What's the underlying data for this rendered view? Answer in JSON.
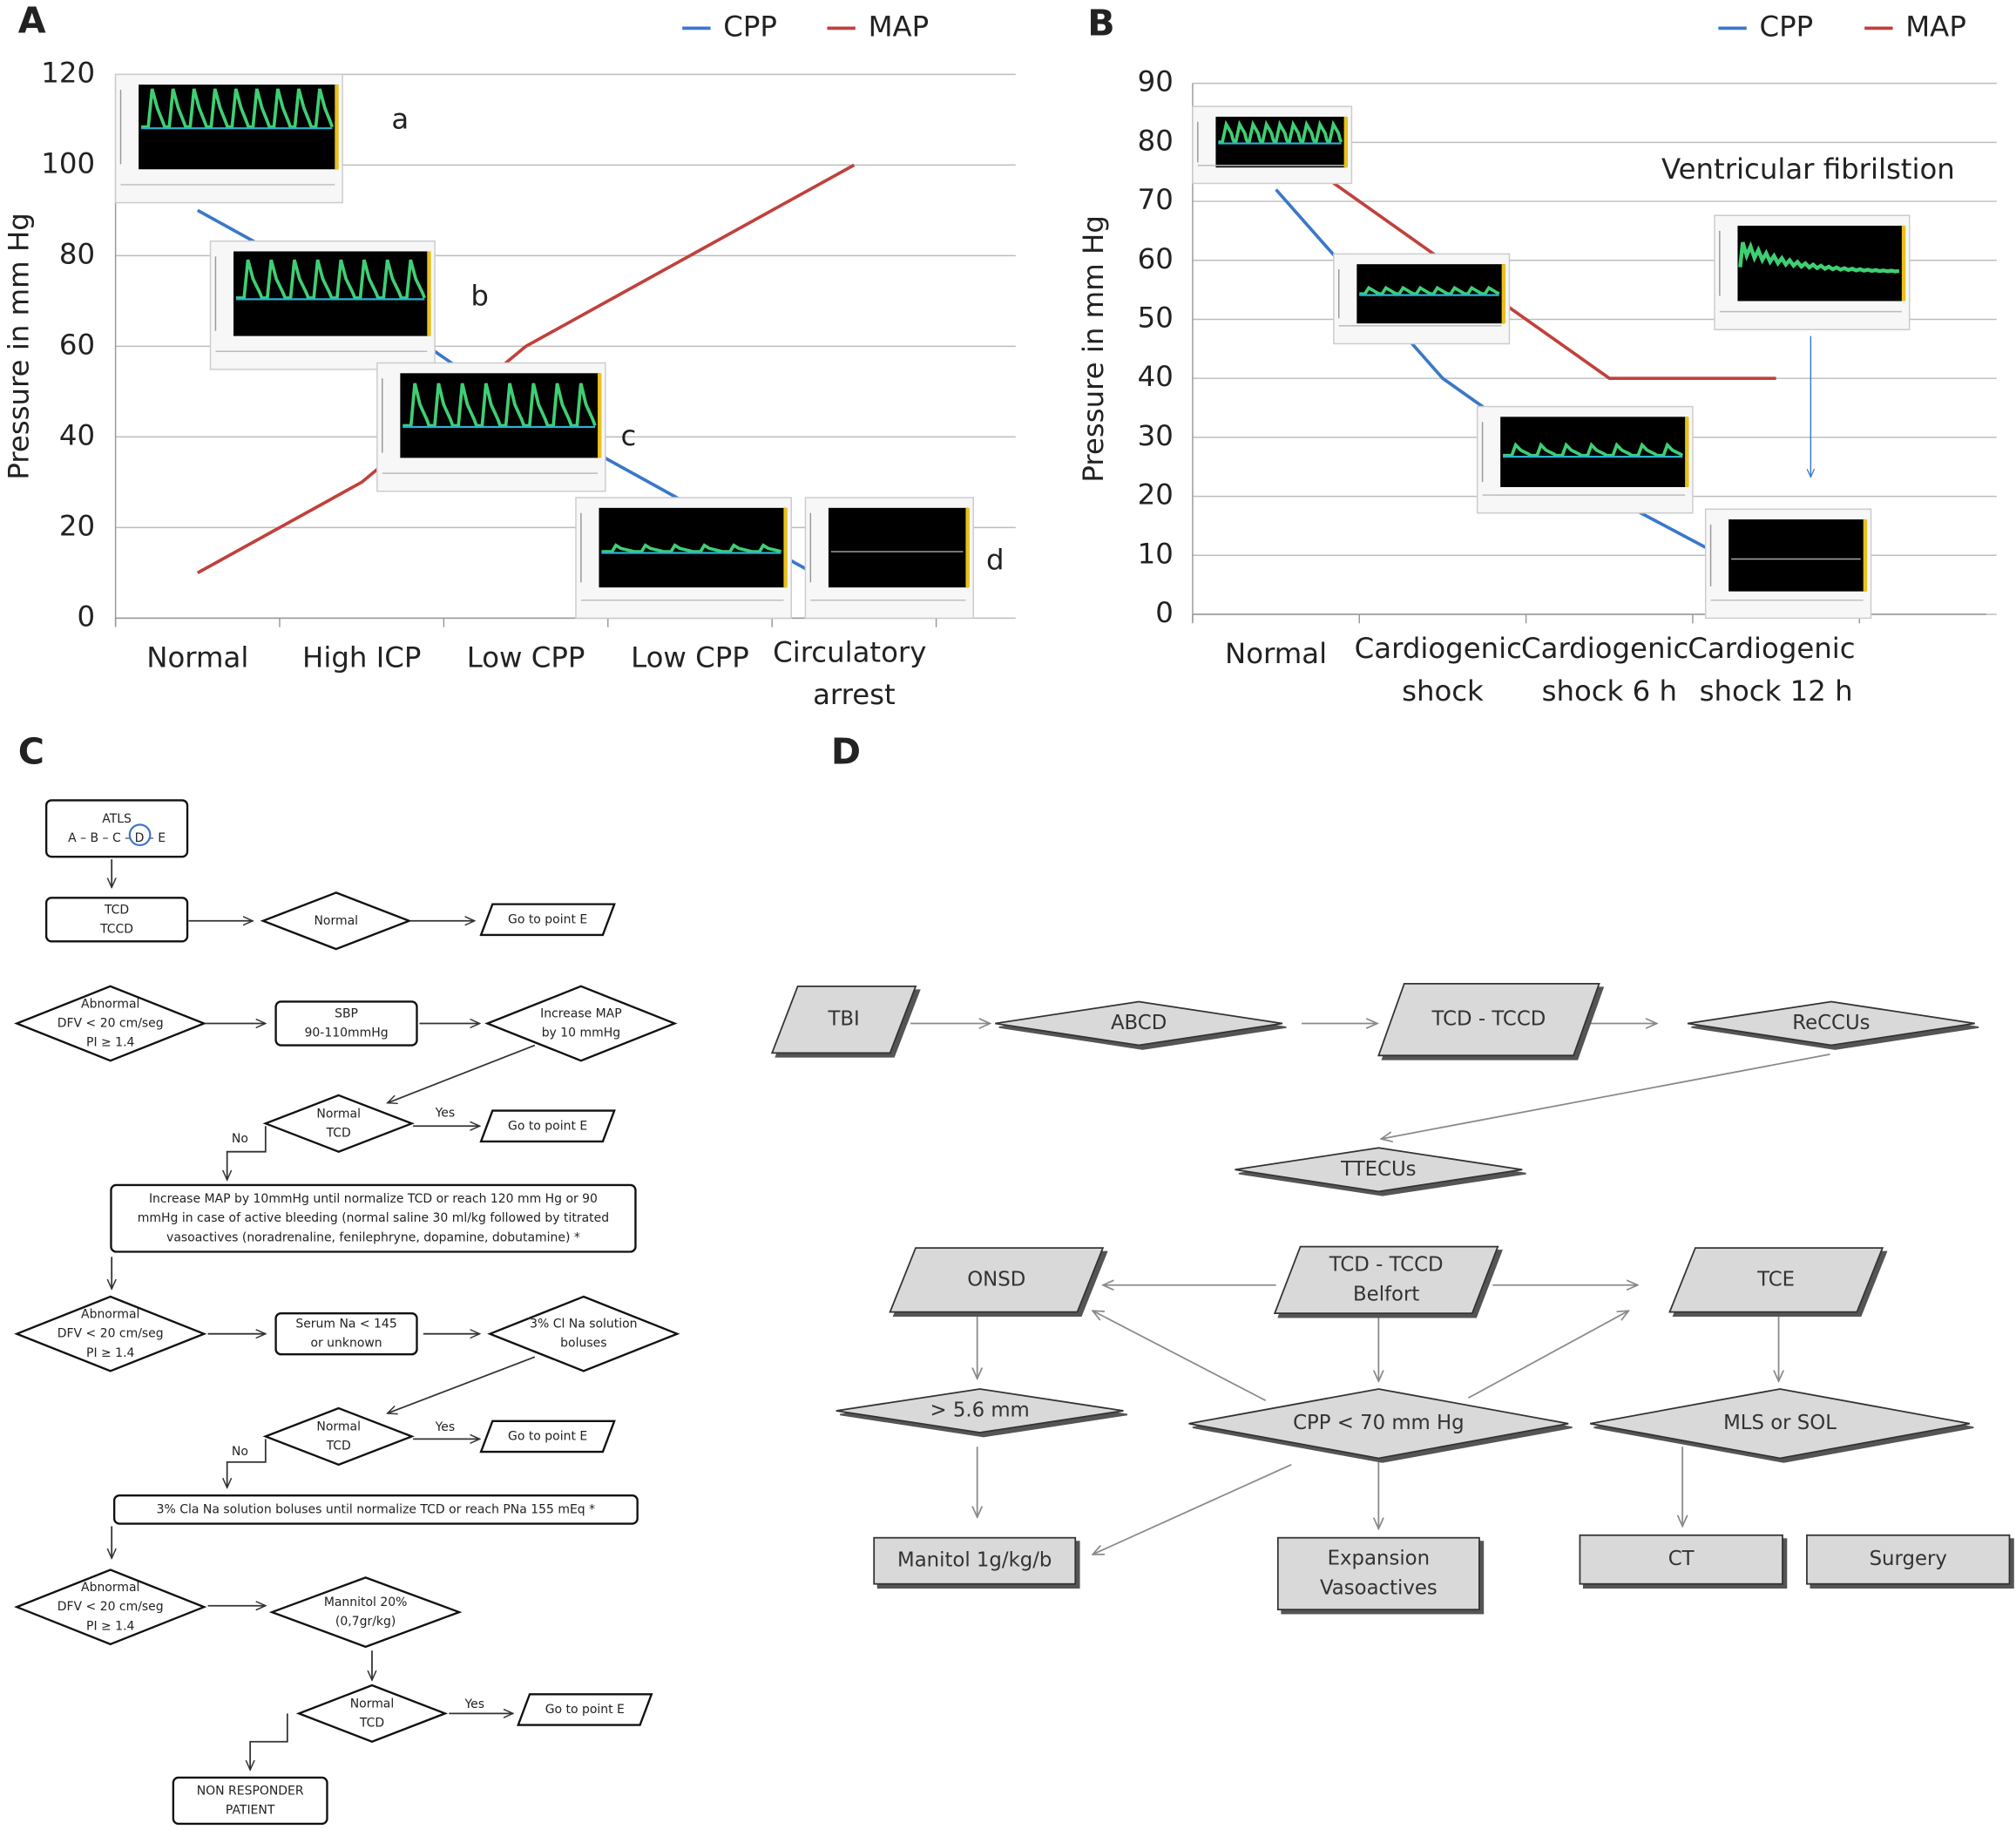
{
  "chart_data": [
    {
      "type": "line",
      "panel": "A",
      "categories": [
        "Normal",
        "High ICP",
        "Low CPP",
        "Low CPP",
        "Circulatory arrest"
      ],
      "series": [
        {
          "name": "CPP",
          "color": "#3a78c9",
          "values": [
            90,
            70,
            45,
            25,
            5
          ]
        },
        {
          "name": "MAP",
          "color": "#c0413c",
          "values": [
            10,
            30,
            60,
            80,
            100
          ]
        }
      ],
      "ylabel": "Pressure in mm Hg",
      "ylim": [
        0,
        120
      ],
      "yticks": [
        0,
        20,
        40,
        60,
        80,
        100,
        120
      ],
      "grid": true,
      "legend": "top-right",
      "annotations": [
        "a",
        "b",
        "c",
        "d"
      ]
    },
    {
      "type": "line",
      "panel": "B",
      "categories": [
        "Normal",
        "Cardiogenic shock",
        "Cardiogenic shock 6 h",
        "Cardiogenic shock 12 h"
      ],
      "series": [
        {
          "name": "CPP",
          "color": "#3a78c9",
          "values": [
            72,
            40,
            20,
            5
          ]
        },
        {
          "name": "MAP",
          "color": "#c0413c",
          "values": [
            80,
            60,
            40,
            40
          ]
        }
      ],
      "ylabel": "Pressure in mm Hg",
      "ylim": [
        0,
        90
      ],
      "yticks": [
        0,
        10,
        20,
        30,
        40,
        50,
        60,
        70,
        80,
        90
      ],
      "grid": true,
      "legend": "top-right",
      "annotations": [
        "Ventricular fibrilstion"
      ]
    }
  ],
  "flowchart_c": {
    "panel": "C",
    "nodes": [
      {
        "lines": [
          "ATLS",
          "A – B – C – D – E"
        ]
      },
      {
        "lines": [
          "TCD",
          "TCCD"
        ]
      },
      {
        "lines": [
          "Normal"
        ]
      },
      {
        "lines": [
          "Go to point E"
        ]
      },
      {
        "lines": [
          "Abnormal",
          "DFV < 20 cm/seg",
          "PI ≥ 1.4"
        ]
      },
      {
        "lines": [
          "SBP",
          "90-110mmHg"
        ]
      },
      {
        "lines": [
          "Increase MAP",
          "by 10 mmHg"
        ]
      },
      {
        "lines": [
          "Normal",
          "TCD"
        ]
      },
      {
        "lines": [
          "Go to point E"
        ]
      },
      {
        "lines": [
          "Increase MAP by 10mmHg until normalize TCD or reach 120 mm Hg or 90",
          "mmHg in case of active bleeding (normal saline 30 ml/kg followed by titrated",
          "vasoactives (noradrenaline, fenilephryne, dopamine, dobutamine) *"
        ]
      },
      {
        "lines": [
          "Abnormal",
          "DFV < 20 cm/seg",
          "PI ≥ 1.4"
        ]
      },
      {
        "lines": [
          "Serum Na < 145",
          "or unknown"
        ]
      },
      {
        "lines": [
          "3% Cl Na solution",
          "boluses"
        ]
      },
      {
        "lines": [
          "Normal",
          "TCD"
        ]
      },
      {
        "lines": [
          "Go to point E"
        ]
      },
      {
        "lines": [
          "3% Cla Na solution boluses until normalize TCD or reach PNa 155 mEq *"
        ]
      },
      {
        "lines": [
          "Abnormal",
          "DFV < 20 cm/seg",
          "PI ≥ 1.4"
        ]
      },
      {
        "lines": [
          "Mannitol 20%",
          "(0,7gr/kg)"
        ]
      },
      {
        "lines": [
          "Normal",
          "TCD"
        ]
      },
      {
        "lines": [
          "Go to point E"
        ]
      },
      {
        "lines": [
          "NON RESPONDER",
          "PATIENT"
        ]
      }
    ],
    "edge_labels": [
      "Yes",
      "No",
      "Yes",
      "No",
      "Yes"
    ]
  },
  "flowchart_d": {
    "panel": "D",
    "nodes": [
      {
        "lines": [
          "TBI"
        ]
      },
      {
        "lines": [
          "ABCD"
        ]
      },
      {
        "lines": [
          "TCD - TCCD"
        ]
      },
      {
        "lines": [
          "ReCCUs"
        ]
      },
      {
        "lines": [
          "TTECUs"
        ]
      },
      {
        "lines": [
          "ONSD"
        ]
      },
      {
        "lines": [
          "TCD - TCCD",
          "Belfort"
        ]
      },
      {
        "lines": [
          "TCE"
        ]
      },
      {
        "lines": [
          "> 5.6 mm"
        ]
      },
      {
        "lines": [
          "CPP < 70 mm Hg"
        ]
      },
      {
        "lines": [
          "MLS or SOL"
        ]
      },
      {
        "lines": [
          "Manitol 1g/kg/b"
        ]
      },
      {
        "lines": [
          "Expansion",
          "Vasoactives"
        ]
      },
      {
        "lines": [
          "CT"
        ]
      },
      {
        "lines": [
          "Surgery"
        ]
      }
    ]
  }
}
